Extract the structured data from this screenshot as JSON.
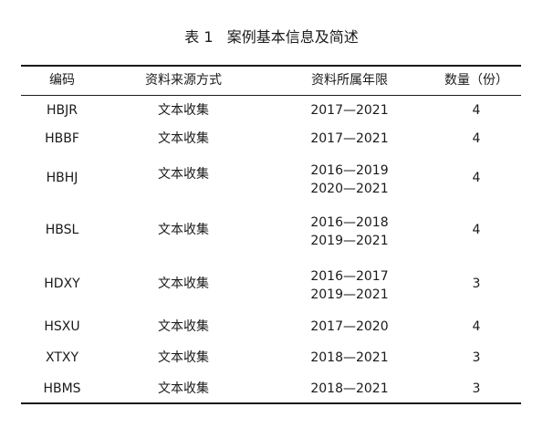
{
  "caption": "表 1   案例基本信息及简述",
  "columns": [
    "编码",
    "资料来源方式",
    "资料所属年限",
    "数量（份）"
  ],
  "rows": [
    {
      "code": "HBJR",
      "method": "文本收集",
      "periods": [
        "2017—2021"
      ],
      "count": "4"
    },
    {
      "code": "HBBF",
      "method": "文本收集",
      "periods": [
        "2017—2021"
      ],
      "count": "4"
    },
    {
      "code": "HBHJ",
      "method": "文本收集",
      "periods": [
        "2016—2019",
        "2020—2021"
      ],
      "count": "4"
    },
    {
      "code": "HBSL",
      "method": "文本收集",
      "periods": [
        "2016—2018",
        "2019—2021"
      ],
      "count": "4"
    },
    {
      "code": "HDXY",
      "method": "文本收集",
      "periods": [
        "2016—2017",
        "2019—2021"
      ],
      "count": "3"
    },
    {
      "code": "HSXU",
      "method": "文本收集",
      "periods": [
        "2017—2020"
      ],
      "count": "4"
    },
    {
      "code": "XTXY",
      "method": "文本收集",
      "periods": [
        "2018—2021"
      ],
      "count": "3"
    },
    {
      "code": "HBMS",
      "method": "文本收集",
      "periods": [
        "2018—2021"
      ],
      "count": "3"
    }
  ]
}
